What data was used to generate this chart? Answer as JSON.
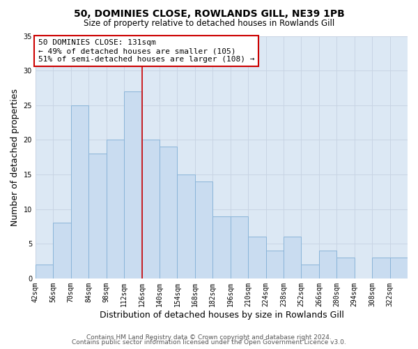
{
  "title": "50, DOMINIES CLOSE, ROWLANDS GILL, NE39 1PB",
  "subtitle": "Size of property relative to detached houses in Rowlands Gill",
  "xlabel": "Distribution of detached houses by size in Rowlands Gill",
  "ylabel": "Number of detached properties",
  "bar_labels": [
    "42sqm",
    "56sqm",
    "70sqm",
    "84sqm",
    "98sqm",
    "112sqm",
    "126sqm",
    "140sqm",
    "154sqm",
    "168sqm",
    "182sqm",
    "196sqm",
    "210sqm",
    "224sqm",
    "238sqm",
    "252sqm",
    "266sqm",
    "280sqm",
    "294sqm",
    "308sqm",
    "322sqm"
  ],
  "bar_values": [
    2,
    8,
    25,
    18,
    20,
    27,
    20,
    19,
    15,
    14,
    9,
    9,
    6,
    4,
    6,
    2,
    4,
    3,
    0,
    3,
    3
  ],
  "bar_color": "#c9dcf0",
  "bar_edgecolor": "#8ab4d8",
  "bin_width": 14,
  "bin_starts": [
    42,
    56,
    70,
    84,
    98,
    112,
    126,
    140,
    154,
    168,
    182,
    196,
    210,
    224,
    238,
    252,
    266,
    280,
    294,
    308,
    322
  ],
  "vline_x": 126,
  "vline_color": "#cc0000",
  "annotation_line1": "50 DOMINIES CLOSE: 131sqm",
  "annotation_line2": "← 49% of detached houses are smaller (105)",
  "annotation_line3": "51% of semi-detached houses are larger (108) →",
  "annotation_box_edgecolor": "#cc0000",
  "annotation_box_facecolor": "#ffffff",
  "ylim": [
    0,
    35
  ],
  "yticks": [
    0,
    5,
    10,
    15,
    20,
    25,
    30,
    35
  ],
  "grid_color": "#c8d4e4",
  "plot_bg_color": "#dce8f4",
  "fig_bg_color": "#ffffff",
  "footer_line1": "Contains HM Land Registry data © Crown copyright and database right 2024.",
  "footer_line2": "Contains public sector information licensed under the Open Government Licence v3.0.",
  "title_fontsize": 10,
  "subtitle_fontsize": 8.5,
  "axis_label_fontsize": 9,
  "tick_fontsize": 7,
  "annotation_fontsize": 8,
  "footer_fontsize": 6.5
}
